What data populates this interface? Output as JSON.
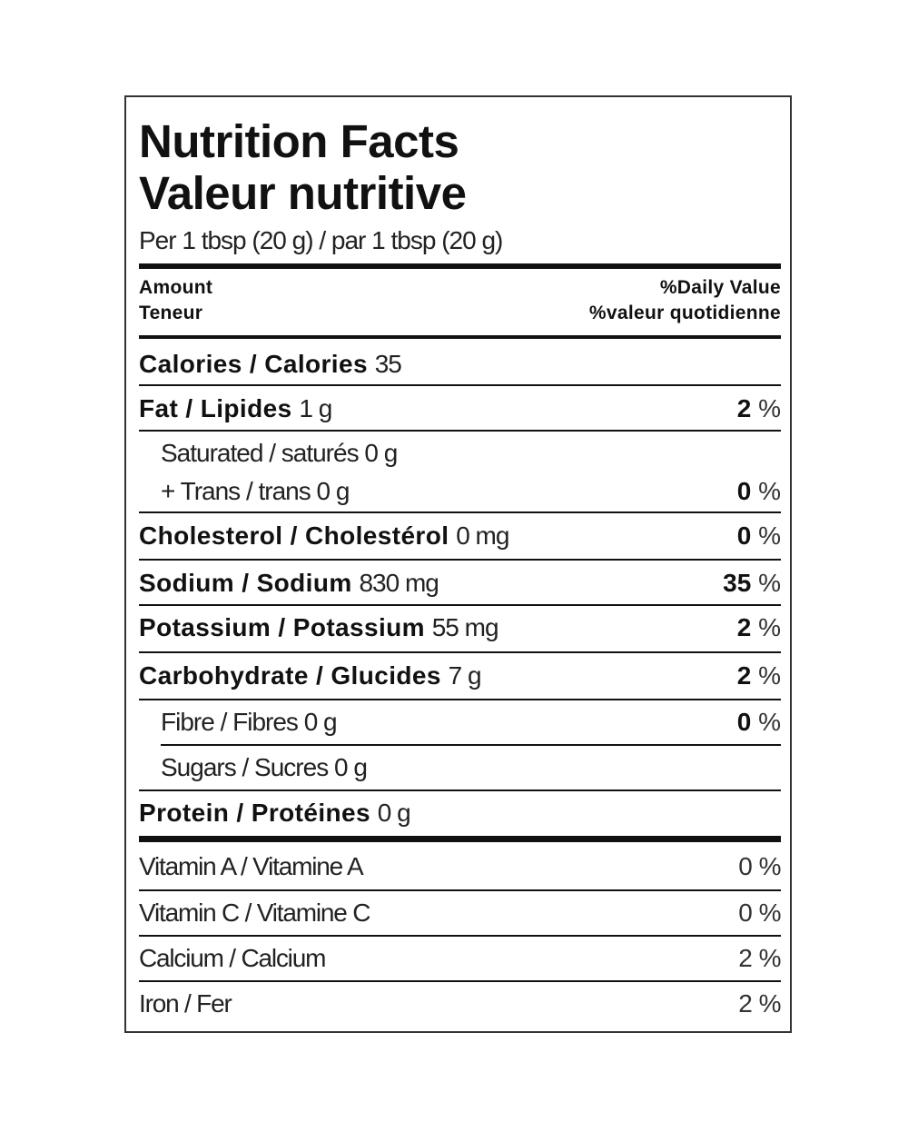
{
  "title": {
    "en": "Nutrition Facts",
    "fr": "Valeur nutritive"
  },
  "serving": "Per 1 tbsp (20 g) / par 1 tbsp (20 g)",
  "header": {
    "amount_en": "Amount",
    "amount_fr": "Teneur",
    "dv_en": "%Daily Value",
    "dv_fr": "%valeur quotidienne"
  },
  "calories": {
    "label": "Calories / Calories",
    "value": "35"
  },
  "nutrients": {
    "fat": {
      "label": "Fat / Lipides",
      "amount": "1 g",
      "pct": "2",
      "unit": "%"
    },
    "saturated": {
      "label": "Saturated / saturés 0 g"
    },
    "trans": {
      "label": "+ Trans / trans 0 g",
      "pct": "0",
      "unit": "%"
    },
    "cholesterol": {
      "label": "Cholesterol / Cholestérol",
      "amount": "0 mg",
      "pct": "0",
      "unit": "%"
    },
    "sodium": {
      "label": "Sodium / Sodium",
      "amount": "830 mg",
      "pct": "35",
      "unit": "%"
    },
    "potassium": {
      "label": "Potassium / Potassium",
      "amount": "55 mg",
      "pct": "2",
      "unit": "%"
    },
    "carbohydrate": {
      "label": "Carbohydrate / Glucides",
      "amount": "7 g",
      "pct": "2",
      "unit": "%"
    },
    "fibre": {
      "label": "Fibre / Fibres 0 g",
      "pct": "0",
      "unit": "%"
    },
    "sugars": {
      "label": "Sugars / Sucres 0 g"
    },
    "protein": {
      "label": "Protein / Protéines",
      "amount": "0 g"
    }
  },
  "vitamins": [
    {
      "label": "Vitamin A / Vitamine A",
      "pct": "0 %"
    },
    {
      "label": "Vitamin C / Vitamine C",
      "pct": "0 %"
    },
    {
      "label": "Calcium / Calcium",
      "pct": "2 %"
    },
    {
      "label": "Iron / Fer",
      "pct": "2 %"
    }
  ]
}
